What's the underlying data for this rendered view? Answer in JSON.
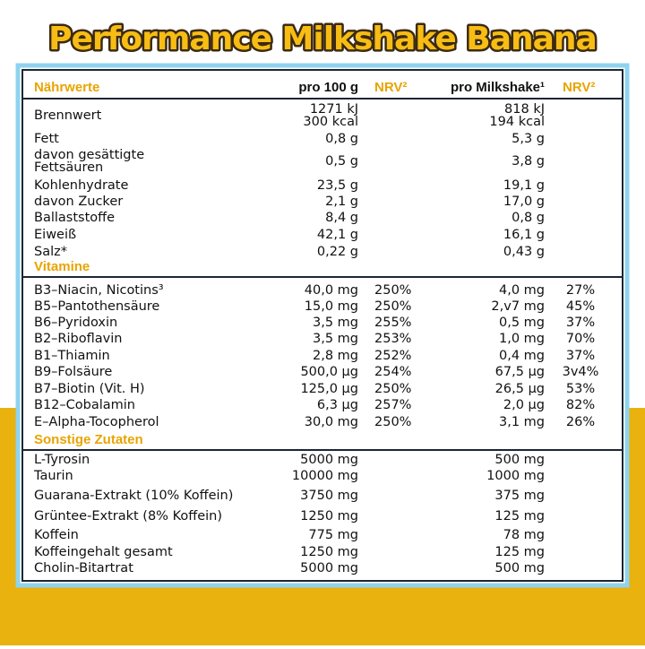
{
  "title": "Performance Milkshake Banana",
  "table": {
    "header": [
      "Nährwerte",
      "pro 100 g",
      "NRV²",
      "pro Milkshake¹",
      "NRV²"
    ],
    "nutrients": [
      {
        "name": "Brennwert",
        "per100": [
          "1271 kJ",
          "300 kcal"
        ],
        "per_shake": [
          "818 kJ",
          "194 kcal"
        ]
      },
      {
        "name": "Fett",
        "per100": "0,8 g",
        "per_shake": "5,3 g"
      },
      {
        "name": [
          "davon gesättigte",
          "Fettsäuren"
        ],
        "per100": "0,5 g",
        "per_shake": "3,8 g"
      },
      {
        "name": "Kohlenhydrate",
        "per100": "23,5 g",
        "per_shake": "19,1 g"
      },
      {
        "name": "davon Zucker",
        "per100": "2,1 g",
        "per_shake": "17,0 g"
      },
      {
        "name": "Ballaststoffe",
        "per100": "8,4 g",
        "per_shake": "0,8 g"
      },
      {
        "name": "Eiweiß",
        "per100": "42,1 g",
        "per_shake": "16,1 g"
      },
      {
        "name": "Salz*",
        "per100": "0,22 g",
        "per_shake": "0,43 g"
      }
    ],
    "vitamins": {
      "title": "Vitamine",
      "rows": [
        {
          "name": "B3–Niacin, Nicotins³",
          "per100": "40,0 mg",
          "nrv100": "250%",
          "per_shake": "4,0 mg",
          "nrv_shake": "27%"
        },
        {
          "name": "B5–Pantothensäure",
          "per100": "15,0 mg",
          "nrv100": "250%",
          "per_shake": "2,v7 mg",
          "nrv_shake": "45%"
        },
        {
          "name": "B6–Pyridoxin",
          "per100": "3,5 mg",
          "nrv100": "255%",
          "per_shake": "0,5 mg",
          "nrv_shake": "37%"
        },
        {
          "name": "B2–Riboflavin",
          "per100": "3,5 mg",
          "nrv100": "253%",
          "per_shake": "1,0 mg",
          "nrv_shake": "70%"
        },
        {
          "name": "B1–Thiamin",
          "per100": "2,8 mg",
          "nrv100": "252%",
          "per_shake": "0,4 mg",
          "nrv_shake": "37%"
        },
        {
          "name": "B9–Folsäure",
          "per100": "500,0 µg",
          "nrv100": "254%",
          "per_shake": "67,5 µg",
          "nrv_shake": "3v4%"
        },
        {
          "name": "B7–Biotin (Vit. H)",
          "per100": "125,0 µg",
          "nrv100": "250%",
          "per_shake": "26,5 µg",
          "nrv_shake": "53%"
        },
        {
          "name": "B12–Cobalamin",
          "per100": "6,3 µg",
          "nrv100": "257%",
          "per_shake": "2,0 µg",
          "nrv_shake": "82%"
        },
        {
          "name": "E–Alpha-Tocopherol",
          "per100": "30,0 mg",
          "nrv100": "250%",
          "per_shake": "3,1 mg",
          "nrv_shake": "26%"
        }
      ]
    },
    "other": {
      "title": "Sonstige Zutaten",
      "rows": [
        {
          "name": "L-Tyrosin",
          "per100": "5000 mg",
          "per_shake": "500 mg"
        },
        {
          "name": "Taurin",
          "per100": "10000 mg",
          "per_shake": "1000 mg"
        },
        {
          "name": "Guarana-Extrakt (10% Koffein)",
          "per100": "3750 mg",
          "per_shake": "375 mg"
        },
        {
          "name": "Grüntee-Extrakt (8% Koffein)",
          "per100": "1250 mg",
          "per_shake": "125 mg"
        },
        {
          "name": "Koffein",
          "per100": "775 mg",
          "per_shake": "78 mg"
        },
        {
          "name": "Koffeingehalt gesamt",
          "per100": "1250 mg",
          "per_shake": "125 mg"
        },
        {
          "name": "Cholin-Bitartrat",
          "per100": "5000 mg",
          "per_shake": "500 mg"
        }
      ]
    }
  }
}
